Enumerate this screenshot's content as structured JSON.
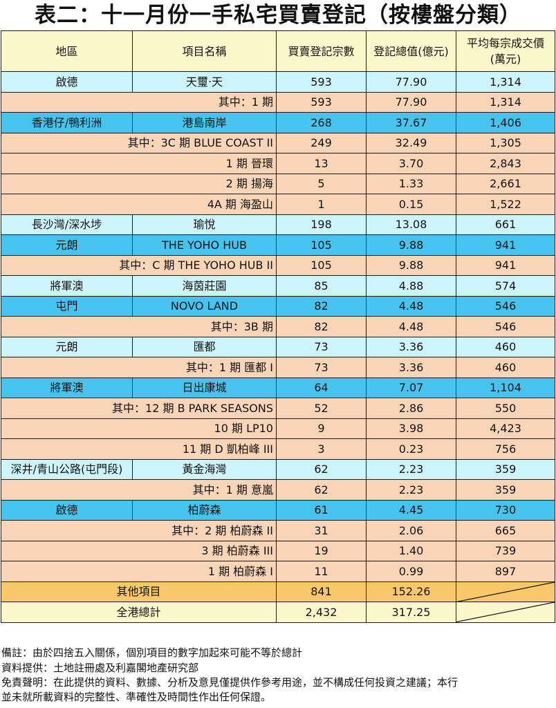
{
  "title": "表二：十一月份一手私宅買賣登記（按樓盤分類）",
  "headers": {
    "district": "地區",
    "project": "項目名稱",
    "count": "買賣登記宗數",
    "value": "登記總值(億元)",
    "avg_line1": "平均每宗成交價",
    "avg_line2": "(萬元)"
  },
  "rows": [
    {
      "type": "main-a",
      "district": "啟德",
      "project": "天璽‧天",
      "count": "593",
      "value": "77.90",
      "avg": "1,314"
    },
    {
      "type": "sub",
      "district": "",
      "project": "其中：1 期",
      "count": "593",
      "value": "77.90",
      "avg": "1,314"
    },
    {
      "type": "main-b",
      "district": "香港仔/鴨利洲",
      "project": "港島南岸",
      "count": "268",
      "value": "37.67",
      "avg": "1,406"
    },
    {
      "type": "sub",
      "district": "",
      "project": "其中：3C 期 BLUE COAST II",
      "count": "249",
      "value": "32.49",
      "avg": "1,305"
    },
    {
      "type": "sub",
      "district": "",
      "project": "1 期 晉環",
      "count": "13",
      "value": "3.70",
      "avg": "2,843"
    },
    {
      "type": "sub",
      "district": "",
      "project": "2 期 揚海",
      "count": "5",
      "value": "1.33",
      "avg": "2,661"
    },
    {
      "type": "sub",
      "district": "",
      "project": "4A 期 海盈山",
      "count": "1",
      "value": "0.15",
      "avg": "1,522"
    },
    {
      "type": "main-a",
      "district": "長沙灣/深水埗",
      "project": "瑜悅",
      "count": "198",
      "value": "13.08",
      "avg": "661"
    },
    {
      "type": "main-b",
      "district": "元朗",
      "project": "THE YOHO HUB",
      "count": "105",
      "value": "9.88",
      "avg": "941"
    },
    {
      "type": "sub",
      "district": "",
      "project": "其中：C 期 THE YOHO HUB II",
      "count": "105",
      "value": "9.88",
      "avg": "941"
    },
    {
      "type": "main-a",
      "district": "將軍澳",
      "project": "海茵莊園",
      "count": "85",
      "value": "4.88",
      "avg": "574"
    },
    {
      "type": "main-b",
      "district": "屯門",
      "project": "NOVO LAND",
      "count": "82",
      "value": "4.48",
      "avg": "546"
    },
    {
      "type": "sub",
      "district": "",
      "project": "其中：3B 期",
      "count": "82",
      "value": "4.48",
      "avg": "546"
    },
    {
      "type": "main-a",
      "district": "元朗",
      "project": "匯都",
      "count": "73",
      "value": "3.36",
      "avg": "460"
    },
    {
      "type": "sub",
      "district": "",
      "project": "其中：1 期 匯都 I",
      "count": "73",
      "value": "3.36",
      "avg": "460"
    },
    {
      "type": "main-b",
      "district": "將軍澳",
      "project": "日出康城",
      "count": "64",
      "value": "7.07",
      "avg": "1,104"
    },
    {
      "type": "sub",
      "district": "",
      "project": "其中：12 期 B PARK SEASONS",
      "count": "52",
      "value": "2.86",
      "avg": "550"
    },
    {
      "type": "sub",
      "district": "",
      "project": "10 期 LP10",
      "count": "9",
      "value": "3.98",
      "avg": "4,423"
    },
    {
      "type": "sub",
      "district": "",
      "project": "11 期 D 凱柏峰 III",
      "count": "3",
      "value": "0.23",
      "avg": "756"
    },
    {
      "type": "main-a",
      "district": "深井/青山公路(屯門段)",
      "project": "黃金海灣",
      "count": "62",
      "value": "2.23",
      "avg": "359"
    },
    {
      "type": "sub",
      "district": "",
      "project": "其中：1 期 意嵐",
      "count": "62",
      "value": "2.23",
      "avg": "359"
    },
    {
      "type": "main-b",
      "district": "啟德",
      "project": "柏蔚森",
      "count": "61",
      "value": "4.45",
      "avg": "730"
    },
    {
      "type": "sub",
      "district": "",
      "project": "其中：2 期 柏蔚森 II",
      "count": "31",
      "value": "2.06",
      "avg": "665"
    },
    {
      "type": "sub",
      "district": "",
      "project": "3 期 柏蔚森 III",
      "count": "19",
      "value": "1.40",
      "avg": "739"
    },
    {
      "type": "sub",
      "district": "",
      "project": "1 期 柏蔚森 I",
      "count": "11",
      "value": "0.99",
      "avg": "897"
    }
  ],
  "other": {
    "label": "其他項目",
    "count": "841",
    "value": "152.26"
  },
  "total": {
    "label": "全港總計",
    "count": "2,432",
    "value": "317.25"
  },
  "notes": [
    "備註：由於四捨五入關係，個別項目的數字加起來可能不等於總計",
    "資料提供：土地註冊處及利嘉閣地產研究部",
    "免責聲明：在此提供的資料、數據、分析及意見僅提供作參考用途，並不構成任何投資之建議；本行",
    "並未就所載資料的完整性、準確性及時間性作出任何保證。"
  ]
}
